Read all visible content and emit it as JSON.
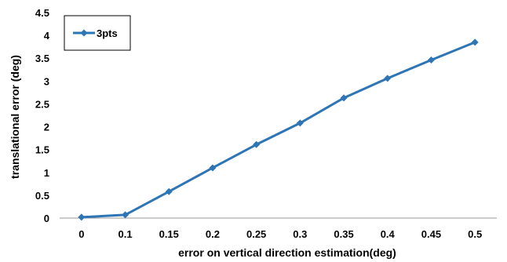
{
  "chart_data": {
    "type": "line",
    "title": "",
    "xlabel": "error on vertical direction estimation(deg)",
    "ylabel": "translational error (deg)",
    "x": [
      "0",
      "0.1",
      "0.15",
      "0.2",
      "0.25",
      "0.3",
      "0.35",
      "0.4",
      "0.45",
      "0.5"
    ],
    "ylim": [
      0,
      4.5
    ],
    "yticks": [
      "0",
      "0.5",
      "1",
      "1.5",
      "2",
      "2.5",
      "3",
      "3.5",
      "4",
      "4.5"
    ],
    "grid": false,
    "legend_position": "top-left",
    "series": [
      {
        "name": "3pts",
        "color": "#2E75B6",
        "marker": "diamond",
        "values": [
          0.02,
          0.07,
          0.58,
          1.1,
          1.61,
          2.08,
          2.63,
          3.06,
          3.46,
          3.85
        ]
      }
    ]
  }
}
